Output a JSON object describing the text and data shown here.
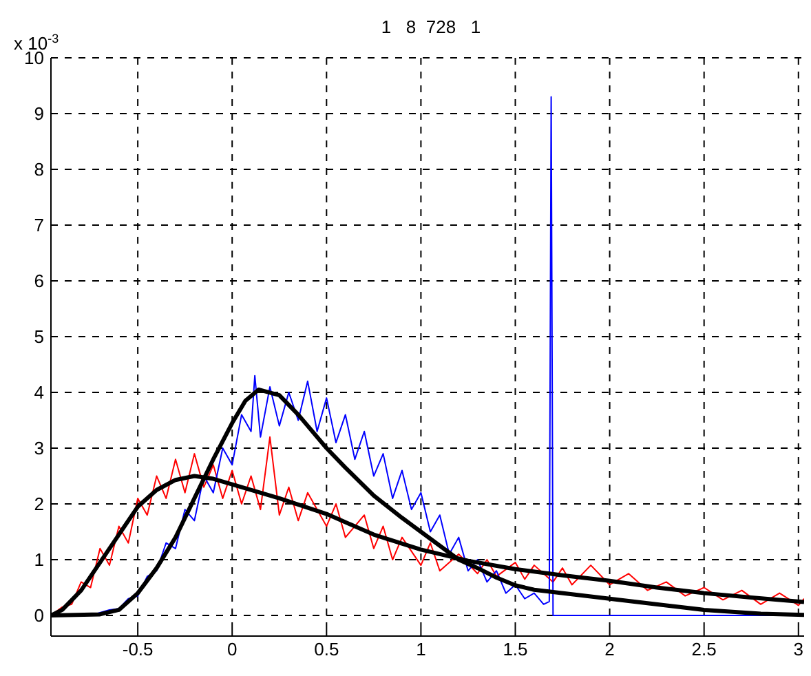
{
  "chart_data": {
    "type": "line",
    "title": "1   8  728   1",
    "annotations": [
      "x 10$^{-3}$"
    ],
    "xlim": [
      -0.96,
      3.03
    ],
    "ylim": [
      -0.37,
      10
    ],
    "xticks": [
      -0.5,
      0,
      0.5,
      1,
      1.5,
      2,
      2.5,
      3
    ],
    "yticks": [
      0,
      1,
      2,
      3,
      4,
      5,
      6,
      7,
      8,
      9,
      10
    ],
    "grid": true,
    "marker": "none",
    "line_style": "solid",
    "series": [
      {
        "color": "#ff0000",
        "x": [
          -0.96,
          -0.9,
          -0.85,
          -0.8,
          -0.75,
          -0.7,
          -0.65,
          -0.6,
          -0.55,
          -0.5,
          -0.45,
          -0.4,
          -0.35,
          -0.3,
          -0.25,
          -0.2,
          -0.15,
          -0.1,
          -0.05,
          0,
          0.05,
          0.1,
          0.15,
          0.2,
          0.25,
          0.3,
          0.35,
          0.4,
          0.5,
          0.55,
          0.6,
          0.7,
          0.75,
          0.8,
          0.85,
          0.9,
          1.0,
          1.05,
          1.1,
          1.2,
          1.3,
          1.35,
          1.4,
          1.5,
          1.55,
          1.6,
          1.7,
          1.75,
          1.8,
          1.9,
          2.0,
          2.1,
          2.2,
          2.3,
          2.4,
          2.5,
          2.6,
          2.7,
          2.8,
          2.9,
          3.0,
          3.03
        ],
        "values": [
          0,
          0.15,
          0.2,
          0.6,
          0.5,
          1.2,
          0.9,
          1.6,
          1.3,
          2.1,
          1.8,
          2.5,
          2.1,
          2.8,
          2.2,
          2.9,
          2.3,
          2.7,
          2.1,
          2.6,
          2.0,
          2.5,
          1.9,
          3.2,
          1.8,
          2.3,
          1.7,
          2.2,
          1.6,
          2.0,
          1.4,
          1.8,
          1.2,
          1.6,
          1.0,
          1.4,
          0.9,
          1.3,
          0.8,
          1.1,
          0.75,
          1.0,
          0.7,
          0.95,
          0.65,
          0.9,
          0.6,
          0.85,
          0.55,
          0.9,
          0.55,
          0.75,
          0.45,
          0.6,
          0.35,
          0.5,
          0.28,
          0.45,
          0.2,
          0.4,
          0.18,
          0.3
        ]
      },
      {
        "color": "#0000ff",
        "x": [
          -0.96,
          -0.75,
          -0.7,
          -0.65,
          -0.6,
          -0.55,
          -0.5,
          -0.45,
          -0.4,
          -0.35,
          -0.3,
          -0.25,
          -0.2,
          -0.15,
          -0.1,
          -0.05,
          0,
          0.05,
          0.1,
          0.12,
          0.15,
          0.2,
          0.25,
          0.3,
          0.35,
          0.4,
          0.45,
          0.5,
          0.55,
          0.6,
          0.65,
          0.7,
          0.75,
          0.8,
          0.85,
          0.9,
          0.95,
          1.0,
          1.05,
          1.1,
          1.15,
          1.2,
          1.25,
          1.3,
          1.35,
          1.4,
          1.45,
          1.5,
          1.55,
          1.6,
          1.65,
          1.68,
          1.69,
          1.7,
          3.03
        ],
        "values": [
          0,
          0,
          0.05,
          0.1,
          0.12,
          0.3,
          0.35,
          0.7,
          0.8,
          1.3,
          1.2,
          1.9,
          1.7,
          2.5,
          2.2,
          3.0,
          2.7,
          3.6,
          3.3,
          4.3,
          3.2,
          4.1,
          3.4,
          4.0,
          3.5,
          4.2,
          3.3,
          3.9,
          3.1,
          3.6,
          2.8,
          3.3,
          2.5,
          2.9,
          2.1,
          2.6,
          1.9,
          2.2,
          1.5,
          1.8,
          1.1,
          1.4,
          0.8,
          1.0,
          0.6,
          0.8,
          0.4,
          0.55,
          0.3,
          0.4,
          0.2,
          0.25,
          9.3,
          0,
          0
        ]
      },
      {
        "color": "#000000",
        "x": [
          -0.96,
          -0.7,
          -0.6,
          -0.5,
          -0.4,
          -0.3,
          -0.2,
          -0.1,
          0,
          0.07,
          0.14,
          0.25,
          0.35,
          0.5,
          0.6,
          0.75,
          0.9,
          1.0,
          1.1,
          1.2,
          1.3,
          1.4,
          1.5,
          1.6,
          1.8,
          2.0,
          2.3,
          2.5,
          2.8,
          3.03
        ],
        "values": [
          0,
          0.02,
          0.1,
          0.4,
          0.85,
          1.4,
          2.1,
          2.8,
          3.45,
          3.85,
          4.05,
          3.95,
          3.6,
          3.0,
          2.65,
          2.15,
          1.75,
          1.5,
          1.25,
          1.0,
          0.85,
          0.68,
          0.54,
          0.46,
          0.38,
          0.3,
          0.18,
          0.1,
          0.03,
          0.01
        ]
      },
      {
        "color": "#000000",
        "x": [
          -0.96,
          -0.9,
          -0.8,
          -0.7,
          -0.6,
          -0.5,
          -0.4,
          -0.3,
          -0.2,
          -0.1,
          0,
          0.25,
          0.5,
          0.75,
          1.0,
          1.25,
          1.5,
          1.75,
          2.0,
          2.25,
          2.5,
          2.75,
          3.03
        ],
        "values": [
          0,
          0.1,
          0.45,
          0.95,
          1.45,
          1.95,
          2.25,
          2.43,
          2.5,
          2.45,
          2.35,
          2.1,
          1.82,
          1.45,
          1.18,
          0.98,
          0.83,
          0.72,
          0.62,
          0.5,
          0.4,
          0.32,
          0.24
        ]
      }
    ]
  }
}
